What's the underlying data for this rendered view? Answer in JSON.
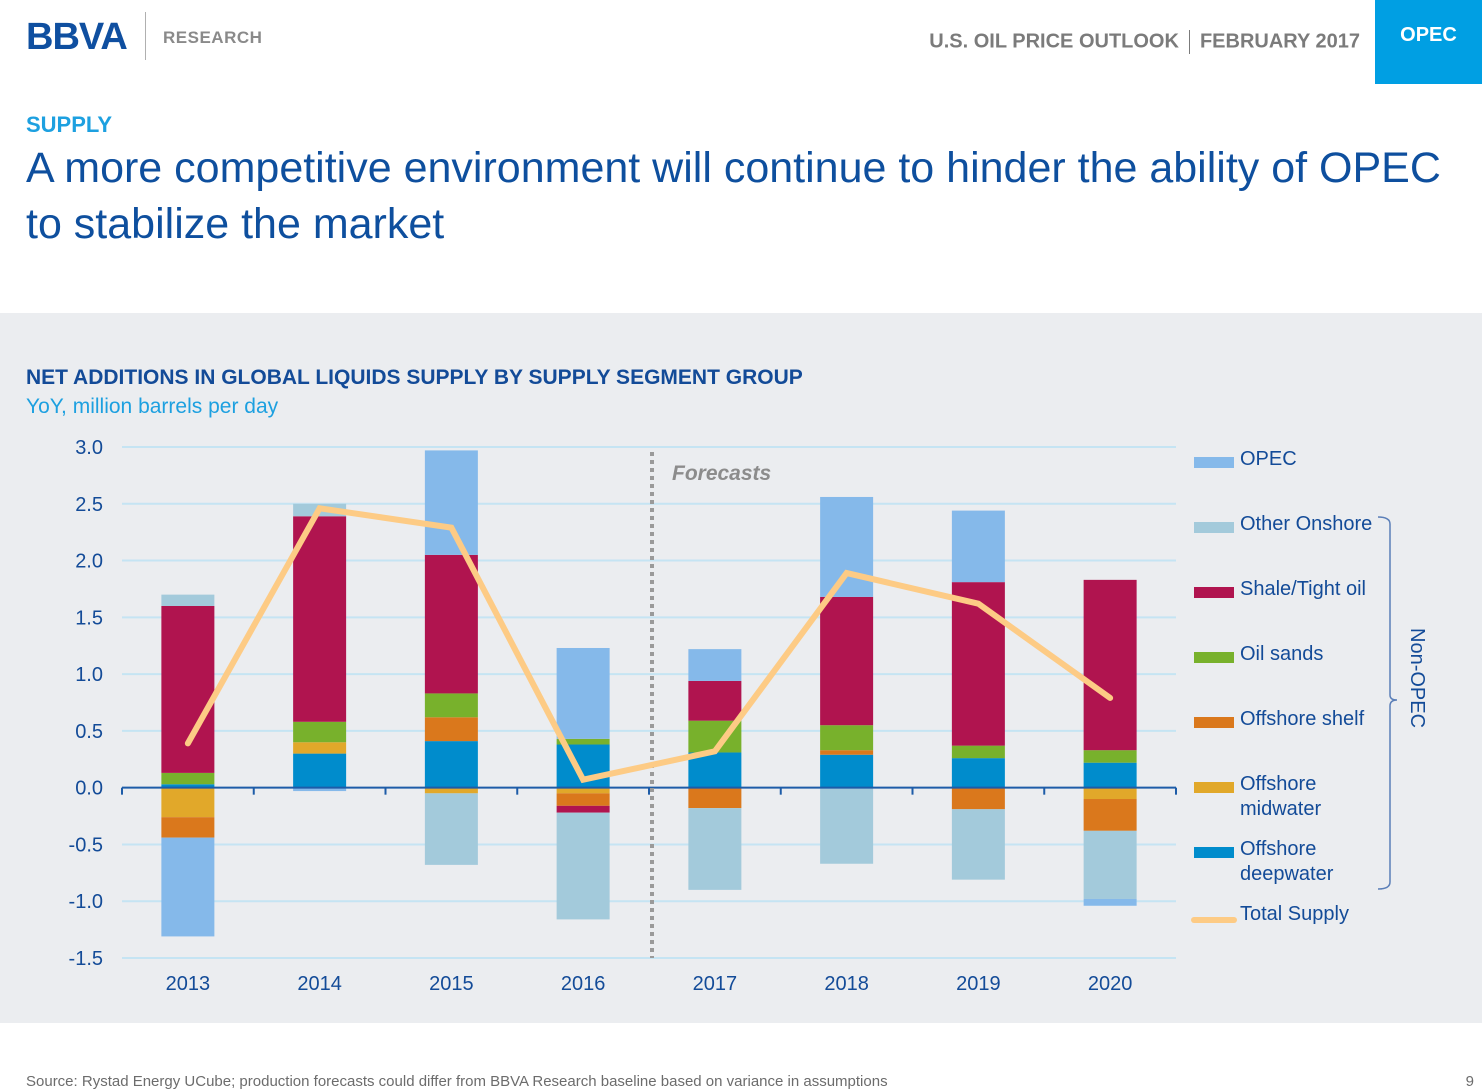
{
  "header": {
    "logo": "BBVA",
    "logo_subtitle": "RESEARCH",
    "report_name": "U.S. OIL PRICE OUTLOOK",
    "report_date": "FEBRUARY 2017",
    "section_tab": "OPEC"
  },
  "page": {
    "kicker": "SUPPLY",
    "headline": "A more competitive environment will continue to hinder the ability of OPEC to stabilize the market",
    "footer_source": "Source: Rystad Energy UCube; production forecasts could differ from BBVA Research baseline based on variance in assumptions",
    "page_number": "9"
  },
  "colors": {
    "OPEC": "#85b9ea",
    "Other Onshore": "#a3cadb",
    "Shale/Tight oil": "#b0144f",
    "Oil sands": "#78b12c",
    "Offshore shelf": "#da781c",
    "Offshore midwater": "#e1a82a",
    "Offshore deepwater": "#008ccc",
    "Total Supply": "#fdcb85",
    "brand_blue": "#0e4f9e",
    "accent_cyan": "#009fe3"
  },
  "chart_data": {
    "type": "bar",
    "stacked": true,
    "title": "NET ADDITIONS IN GLOBAL LIQUIDS SUPPLY BY SUPPLY SEGMENT GROUP",
    "subtitle": "YoY, million barrels per day",
    "xlabel": "",
    "ylabel": "YoY, million barrels per day",
    "categories": [
      "2013",
      "2014",
      "2015",
      "2016",
      "2017",
      "2018",
      "2019",
      "2020"
    ],
    "ylim": [
      -1.5,
      3.0
    ],
    "yticks": [
      "3.0",
      "2.5",
      "2.0",
      "1.5",
      "1.0",
      "0.5",
      "0.0",
      "-0.5",
      "-1.0",
      "-1.5"
    ],
    "ytick_values": [
      3.0,
      2.5,
      2.0,
      1.5,
      1.0,
      0.5,
      0.0,
      -0.5,
      -1.0,
      -1.5
    ],
    "grid": true,
    "annotation": "Forecasts",
    "forecast_start_after": "2016",
    "legend_position": "right",
    "legend_group_label": "Non-OPEC",
    "legend_group_members": [
      "Other Onshore",
      "Shale/Tight oil",
      "Oil sands",
      "Offshore shelf",
      "Offshore midwater",
      "Offshore deepwater"
    ],
    "series": [
      {
        "name": "Offshore deepwater",
        "type": "bar",
        "values": [
          0.03,
          0.3,
          0.41,
          0.38,
          0.31,
          0.29,
          0.26,
          0.22
        ]
      },
      {
        "name": "Offshore midwater",
        "type": "bar",
        "values": [
          -0.26,
          0.1,
          -0.05,
          -0.05,
          0.0,
          0.0,
          0.0,
          -0.1
        ]
      },
      {
        "name": "Offshore shelf",
        "type": "bar",
        "values": [
          -0.18,
          0.0,
          0.21,
          -0.11,
          -0.18,
          0.04,
          -0.19,
          -0.28
        ]
      },
      {
        "name": "Oil sands",
        "type": "bar",
        "values": [
          0.1,
          0.18,
          0.21,
          0.05,
          0.28,
          0.22,
          0.11,
          0.11
        ]
      },
      {
        "name": "Shale/Tight oil",
        "type": "bar",
        "values": [
          1.47,
          1.81,
          1.22,
          -0.06,
          0.35,
          1.13,
          1.44,
          1.5
        ]
      },
      {
        "name": "Other Onshore",
        "type": "bar",
        "values": [
          0.1,
          0.11,
          -0.63,
          -0.94,
          -0.72,
          -0.67,
          -0.62,
          -0.6
        ]
      },
      {
        "name": "OPEC",
        "type": "bar",
        "values": [
          -0.87,
          -0.03,
          0.92,
          0.8,
          0.28,
          0.88,
          0.63,
          -0.06
        ]
      },
      {
        "name": "Total Supply",
        "type": "line",
        "values": [
          0.39,
          2.46,
          2.29,
          0.07,
          0.32,
          1.89,
          1.62,
          0.79
        ]
      }
    ],
    "legend": [
      {
        "label": "OPEC",
        "kind": "bar"
      },
      {
        "label": "Other Onshore",
        "kind": "bar"
      },
      {
        "label": "Shale/Tight oil",
        "kind": "bar"
      },
      {
        "label": "Oil sands",
        "kind": "bar"
      },
      {
        "label": "Offshore shelf",
        "kind": "bar"
      },
      {
        "label": "Offshore midwater",
        "kind": "bar"
      },
      {
        "label": "Offshore deepwater",
        "kind": "bar"
      },
      {
        "label": "Total Supply",
        "kind": "line"
      }
    ]
  }
}
